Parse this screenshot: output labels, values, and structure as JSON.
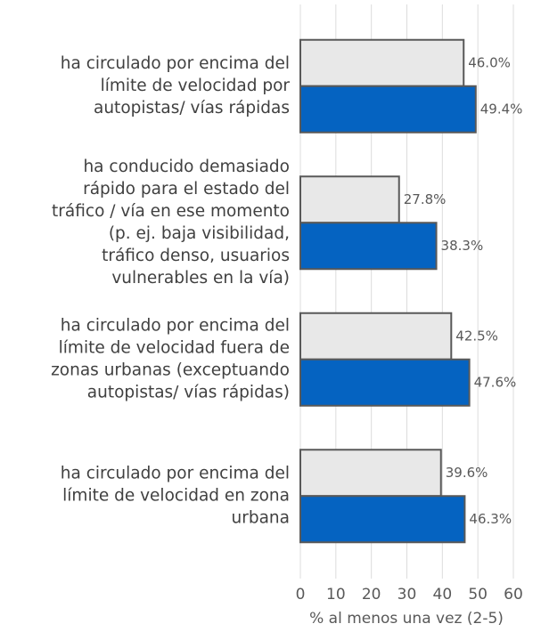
{
  "chart_data": {
    "type": "hbar",
    "categories": [
      [
        "ha circulado por encima del",
        "límite de velocidad por",
        "autopistas/ vías rápidas"
      ],
      [
        "ha conducido demasiado",
        "rápido para el estado del",
        "tráfico / vía en ese momento",
        "(p. ej. baja visibilidad,",
        "tráfico denso, usuarios",
        "vulnerables en la vía)"
      ],
      [
        "ha circulado por encima del",
        "límite de velocidad fuera de",
        "zonas urbanas (exceptuando",
        "autopistas/ vías rápidas)"
      ],
      [
        "ha circulado por encima del",
        "límite de velocidad en zona",
        "urbana"
      ]
    ],
    "series": [
      {
        "color": "#e8e8e8",
        "values": [
          46.0,
          27.8,
          42.5,
          39.6
        ],
        "value_labels": [
          "46.0%",
          "27.8%",
          "42.5%",
          "39.6%"
        ]
      },
      {
        "color": "#0563c1",
        "values": [
          49.4,
          38.3,
          47.6,
          46.3
        ],
        "value_labels": [
          "49.4%",
          "38.3%",
          "47.6%",
          "46.3%"
        ]
      }
    ],
    "xlabel": "% al menos una vez (2-5)",
    "xlim": [
      0,
      60
    ],
    "xticks": [
      0,
      10,
      20,
      30,
      40,
      50,
      60
    ],
    "grid": true
  }
}
